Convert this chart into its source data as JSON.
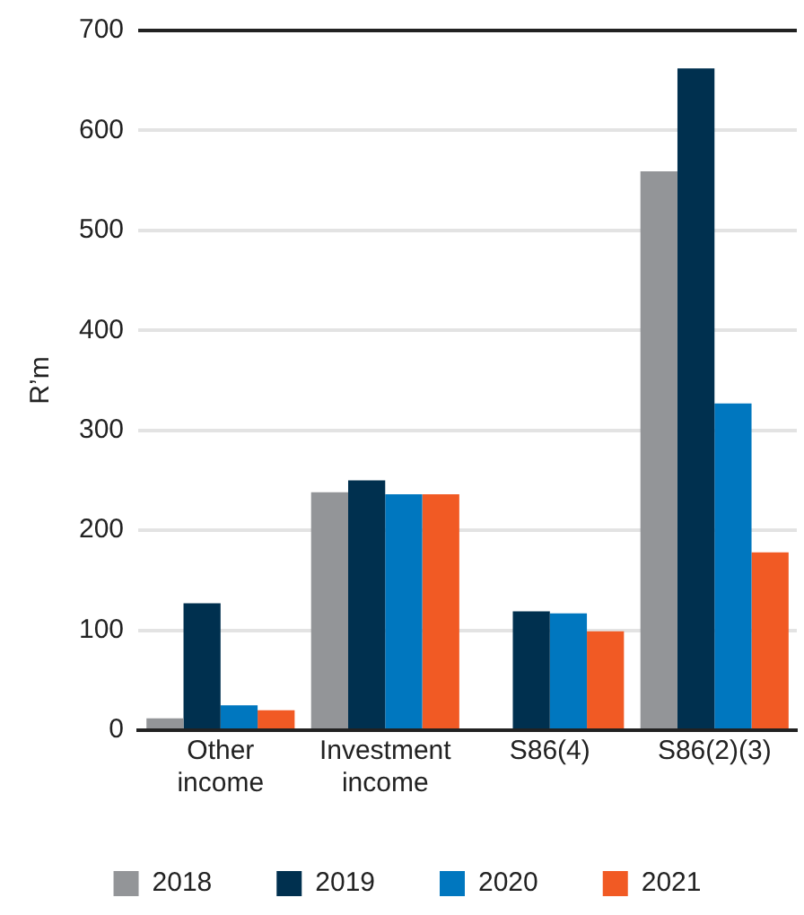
{
  "chart_data": {
    "type": "bar",
    "ylabel": "R’m",
    "categories": [
      [
        "Other",
        "income"
      ],
      [
        "Investment",
        "income"
      ],
      "S86(4)",
      "S86(2)(3)"
    ],
    "series": [
      {
        "name": "2018",
        "color": "#939598",
        "values": [
          12,
          238,
          null,
          559
        ]
      },
      {
        "name": "2019",
        "color": "#00304f",
        "values": [
          127,
          250,
          119,
          662
        ]
      },
      {
        "name": "2020",
        "color": "#0077bf",
        "values": [
          25,
          236,
          117,
          327
        ]
      },
      {
        "name": "2021",
        "color": "#f15a24",
        "values": [
          20,
          236,
          99,
          178
        ]
      }
    ],
    "ylim": [
      0,
      700
    ],
    "yticks": [
      0,
      100,
      200,
      300,
      400,
      500,
      600,
      700
    ],
    "grid": "y",
    "legend": "bottom"
  }
}
